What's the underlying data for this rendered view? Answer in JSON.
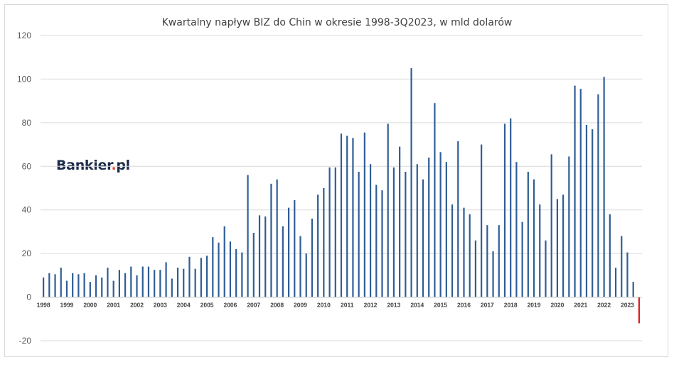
{
  "brand": {
    "name": "Bankier",
    "dot": ".",
    "tld": "pl"
  },
  "chart_data": {
    "type": "bar",
    "title": "Kwartalny napływ BIZ do Chin w okresie 1998-3Q2023, w mld dolarów",
    "xlabel": "",
    "ylabel": "",
    "ylim": [
      -20,
      120
    ],
    "yticks": [
      120,
      100,
      80,
      60,
      40,
      20,
      0,
      -20
    ],
    "grid": true,
    "legend": "none",
    "year_labels": [
      "1998",
      "1999",
      "2000",
      "2001",
      "2002",
      "2003",
      "2004",
      "2005",
      "2006",
      "2007",
      "2008",
      "2009",
      "2010",
      "2011",
      "2012",
      "2013",
      "2014",
      "2015",
      "2016",
      "2017",
      "2018",
      "2019",
      "2020",
      "2021",
      "2022",
      "2023"
    ],
    "series": [
      {
        "values": [
          9,
          11,
          10.5,
          13.5,
          7.5,
          11,
          10.5,
          11,
          7,
          10,
          9,
          13.5,
          7.5,
          12.5,
          11,
          14,
          10,
          14,
          14,
          12.5,
          12.5,
          16,
          8.5,
          13.5,
          13,
          18.5,
          13,
          18,
          19,
          27.5,
          25,
          32.5,
          25.5,
          22,
          20.5,
          56,
          29.5,
          37.5,
          37,
          52,
          54,
          32.5,
          41,
          44.5,
          28,
          20,
          36,
          47,
          50,
          59.5,
          59.5,
          75,
          74,
          73,
          57.5,
          75.5,
          61,
          51.5,
          49,
          79.5,
          59.5,
          69,
          57.5,
          105,
          61,
          54,
          64,
          89,
          66.5,
          62,
          42.5,
          71.5,
          41,
          38,
          26,
          70,
          33,
          21,
          33,
          79.5,
          82,
          62,
          34.5,
          57.5,
          54,
          42.5,
          26,
          65.5,
          45,
          47,
          64.5,
          97,
          95.5,
          79,
          77,
          93,
          101,
          38,
          13.5,
          28,
          20.5,
          7,
          -12
        ],
        "colors": {
          "positive": "#2f5d95",
          "negative": "#e02020"
        }
      }
    ]
  }
}
